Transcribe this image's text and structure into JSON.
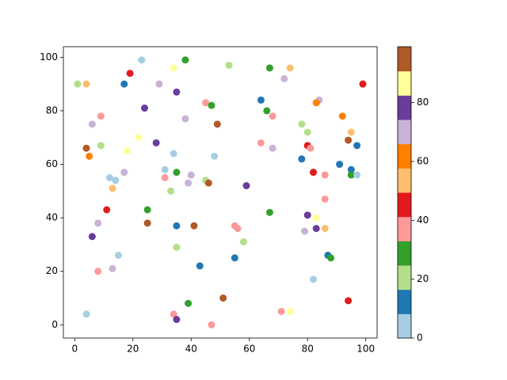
{
  "chart_data": {
    "type": "scatter",
    "x": [
      1,
      4,
      23,
      19,
      17,
      34,
      38,
      53,
      67,
      74,
      72,
      99,
      84,
      83,
      64,
      29,
      35,
      45,
      47,
      24,
      9,
      6,
      66,
      68,
      38,
      49,
      78,
      80,
      92,
      95,
      94,
      97,
      22,
      28,
      4,
      9,
      18,
      5,
      34,
      48,
      64,
      68,
      80,
      81,
      78,
      91,
      95,
      95,
      97,
      82,
      86,
      31,
      35,
      17,
      12,
      14,
      31,
      40,
      45,
      46,
      39,
      59,
      13,
      33,
      86,
      11,
      25,
      67,
      80,
      83,
      25,
      8,
      35,
      41,
      55,
      56,
      83,
      86,
      79,
      6,
      58,
      35,
      15,
      87,
      88,
      55,
      43,
      13,
      8,
      82,
      51,
      39,
      94,
      4,
      34,
      35,
      71,
      74,
      47
    ],
    "y": [
      90,
      90,
      99,
      94,
      90,
      96,
      99,
      97,
      96,
      96,
      92,
      90,
      84,
      83,
      84,
      90,
      87,
      83,
      82,
      81,
      78,
      75,
      80,
      78,
      77,
      75,
      75,
      72,
      78,
      72,
      69,
      67,
      70,
      68,
      66,
      67,
      65,
      63,
      64,
      63,
      68,
      66,
      67,
      66,
      62,
      60,
      58,
      56,
      56,
      57,
      56,
      58,
      57,
      57,
      55,
      54,
      55,
      56,
      54,
      53,
      53,
      52,
      51,
      50,
      47,
      43,
      43,
      42,
      41,
      40,
      38,
      38,
      37,
      37,
      37,
      36,
      36,
      36,
      35,
      33,
      31,
      29,
      26,
      26,
      25,
      25,
      22,
      21,
      20,
      17,
      10,
      8,
      9,
      4,
      4,
      2,
      5,
      5,
      0
    ],
    "color_values": [
      21,
      54,
      4,
      45,
      12,
      87,
      29,
      21,
      29,
      54,
      70,
      45,
      70,
      62,
      12,
      70,
      78,
      37,
      29,
      78,
      37,
      70,
      29,
      37,
      70,
      95,
      21,
      21,
      62,
      54,
      95,
      12,
      87,
      78,
      95,
      21,
      87,
      62,
      4,
      4,
      37,
      70,
      45,
      37,
      12,
      12,
      12,
      29,
      4,
      45,
      37,
      4,
      29,
      70,
      4,
      4,
      37,
      70,
      21,
      95,
      70,
      78,
      54,
      21,
      37,
      45,
      29,
      29,
      78,
      87,
      95,
      70,
      12,
      95,
      37,
      37,
      78,
      54,
      70,
      78,
      21,
      21,
      4,
      12,
      29,
      12,
      12,
      70,
      37,
      4,
      95,
      29,
      45,
      4,
      37,
      78,
      37,
      87,
      37
    ],
    "colormap": [
      "#a6cee3",
      "#1f78b4",
      "#b2df8a",
      "#33a02c",
      "#fb9a99",
      "#e31a1c",
      "#fdbf6f",
      "#ff7f00",
      "#cab2d6",
      "#6a3d9a",
      "#ffff99",
      "#b15928"
    ],
    "xlim": [
      -3.9,
      103.9
    ],
    "ylim": [
      -4.95,
      103.95
    ],
    "xticks": [
      0,
      20,
      40,
      60,
      80,
      100
    ],
    "yticks": [
      0,
      20,
      40,
      60,
      80,
      100
    ],
    "clim": [
      0,
      99
    ],
    "cticks": [
      0,
      20,
      40,
      60,
      80
    ]
  }
}
